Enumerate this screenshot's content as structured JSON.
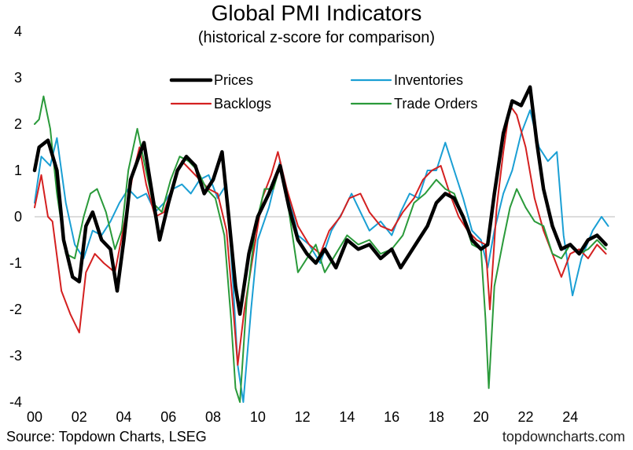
{
  "header": {
    "title": "Global PMI Indicators",
    "subtitle": "(historical z-score for comparison)"
  },
  "footer": {
    "source": "Source: Topdown Charts, LSEG",
    "credit": "topdowncharts.com"
  },
  "chart_data": {
    "type": "line",
    "title": "Global PMI Indicators",
    "subtitle": "(historical z-score for comparison)",
    "xlabel": "",
    "ylabel": "",
    "xlim": [
      2000,
      2026
    ],
    "ylim": [
      -4,
      4
    ],
    "yticks": [
      -4,
      -3,
      -2,
      -1,
      0,
      1,
      2,
      3,
      4
    ],
    "xticks": [
      {
        "value": 2000,
        "label": "00"
      },
      {
        "value": 2002,
        "label": "02"
      },
      {
        "value": 2004,
        "label": "04"
      },
      {
        "value": 2006,
        "label": "06"
      },
      {
        "value": 2008,
        "label": "08"
      },
      {
        "value": 2010,
        "label": "10"
      },
      {
        "value": 2012,
        "label": "12"
      },
      {
        "value": 2014,
        "label": "14"
      },
      {
        "value": 2016,
        "label": "16"
      },
      {
        "value": 2018,
        "label": "18"
      },
      {
        "value": 2020,
        "label": "20"
      },
      {
        "value": 2022,
        "label": "22"
      },
      {
        "value": 2024,
        "label": "24"
      }
    ],
    "zero_line": true,
    "grid": false,
    "legend": "top",
    "series": [
      {
        "name": "Prices",
        "color": "#000000",
        "points": [
          [
            2000.0,
            1.0
          ],
          [
            2000.2,
            1.5
          ],
          [
            2000.6,
            1.65
          ],
          [
            2001.0,
            1.0
          ],
          [
            2001.3,
            -0.5
          ],
          [
            2001.7,
            -1.3
          ],
          [
            2002.0,
            -1.4
          ],
          [
            2002.3,
            -0.2
          ],
          [
            2002.6,
            0.1
          ],
          [
            2003.0,
            -0.5
          ],
          [
            2003.4,
            -0.7
          ],
          [
            2003.7,
            -1.6
          ],
          [
            2004.0,
            -0.5
          ],
          [
            2004.3,
            0.8
          ],
          [
            2004.6,
            1.2
          ],
          [
            2004.9,
            1.6
          ],
          [
            2005.2,
            0.7
          ],
          [
            2005.6,
            -0.5
          ],
          [
            2006.0,
            0.3
          ],
          [
            2006.4,
            1.0
          ],
          [
            2006.8,
            1.3
          ],
          [
            2007.2,
            1.1
          ],
          [
            2007.6,
            0.5
          ],
          [
            2008.0,
            0.8
          ],
          [
            2008.4,
            1.4
          ],
          [
            2008.7,
            0.0
          ],
          [
            2009.0,
            -1.5
          ],
          [
            2009.2,
            -2.1
          ],
          [
            2009.6,
            -0.8
          ],
          [
            2010.0,
            0.0
          ],
          [
            2010.5,
            0.5
          ],
          [
            2011.0,
            1.1
          ],
          [
            2011.4,
            0.2
          ],
          [
            2011.8,
            -0.5
          ],
          [
            2012.2,
            -0.8
          ],
          [
            2012.6,
            -1.0
          ],
          [
            2013.0,
            -0.7
          ],
          [
            2013.5,
            -1.1
          ],
          [
            2014.0,
            -0.5
          ],
          [
            2014.5,
            -0.7
          ],
          [
            2015.0,
            -0.6
          ],
          [
            2015.5,
            -0.9
          ],
          [
            2016.0,
            -0.7
          ],
          [
            2016.4,
            -1.1
          ],
          [
            2016.8,
            -0.8
          ],
          [
            2017.2,
            -0.5
          ],
          [
            2017.6,
            -0.2
          ],
          [
            2018.0,
            0.3
          ],
          [
            2018.4,
            0.5
          ],
          [
            2018.8,
            0.4
          ],
          [
            2019.2,
            0.0
          ],
          [
            2019.6,
            -0.5
          ],
          [
            2020.0,
            -0.7
          ],
          [
            2020.3,
            -0.6
          ],
          [
            2020.6,
            0.5
          ],
          [
            2021.0,
            1.8
          ],
          [
            2021.4,
            2.5
          ],
          [
            2021.8,
            2.4
          ],
          [
            2022.2,
            2.8
          ],
          [
            2022.5,
            1.6
          ],
          [
            2022.8,
            0.6
          ],
          [
            2023.2,
            -0.2
          ],
          [
            2023.6,
            -0.7
          ],
          [
            2024.0,
            -0.6
          ],
          [
            2024.4,
            -0.8
          ],
          [
            2024.8,
            -0.5
          ],
          [
            2025.2,
            -0.4
          ],
          [
            2025.6,
            -0.6
          ]
        ]
      },
      {
        "name": "Inventories",
        "color": "#1a9fd4",
        "points": [
          [
            2000.0,
            0.3
          ],
          [
            2000.3,
            1.3
          ],
          [
            2000.7,
            1.1
          ],
          [
            2001.0,
            1.7
          ],
          [
            2001.4,
            0.3
          ],
          [
            2001.8,
            -0.6
          ],
          [
            2002.2,
            -0.9
          ],
          [
            2002.6,
            -0.3
          ],
          [
            2003.0,
            -0.4
          ],
          [
            2003.4,
            -0.1
          ],
          [
            2003.8,
            0.3
          ],
          [
            2004.2,
            0.6
          ],
          [
            2004.6,
            0.4
          ],
          [
            2005.0,
            0.5
          ],
          [
            2005.4,
            0.1
          ],
          [
            2005.8,
            0.3
          ],
          [
            2006.2,
            0.6
          ],
          [
            2006.6,
            0.7
          ],
          [
            2007.0,
            0.5
          ],
          [
            2007.4,
            0.8
          ],
          [
            2007.8,
            0.9
          ],
          [
            2008.2,
            0.4
          ],
          [
            2008.6,
            0.7
          ],
          [
            2008.9,
            -1.5
          ],
          [
            2009.1,
            -3.2
          ],
          [
            2009.35,
            -4.0
          ],
          [
            2009.7,
            -2.0
          ],
          [
            2010.0,
            -0.5
          ],
          [
            2010.5,
            0.2
          ],
          [
            2011.0,
            1.2
          ],
          [
            2011.4,
            0.4
          ],
          [
            2011.8,
            -0.4
          ],
          [
            2012.3,
            -0.6
          ],
          [
            2012.8,
            -1.0
          ],
          [
            2013.3,
            -0.3
          ],
          [
            2013.8,
            0.1
          ],
          [
            2014.2,
            0.5
          ],
          [
            2014.6,
            0.1
          ],
          [
            2015.0,
            -0.3
          ],
          [
            2015.5,
            -0.1
          ],
          [
            2016.0,
            -0.4
          ],
          [
            2016.4,
            0.1
          ],
          [
            2016.8,
            0.5
          ],
          [
            2017.2,
            0.4
          ],
          [
            2017.6,
            1.0
          ],
          [
            2018.0,
            1.0
          ],
          [
            2018.4,
            1.6
          ],
          [
            2018.8,
            1.0
          ],
          [
            2019.2,
            0.4
          ],
          [
            2019.6,
            -0.3
          ],
          [
            2020.0,
            -0.5
          ],
          [
            2020.3,
            -1.1
          ],
          [
            2020.6,
            -0.3
          ],
          [
            2021.0,
            0.5
          ],
          [
            2021.4,
            1.0
          ],
          [
            2021.8,
            1.8
          ],
          [
            2022.2,
            2.3
          ],
          [
            2022.6,
            1.5
          ],
          [
            2023.0,
            1.2
          ],
          [
            2023.4,
            1.4
          ],
          [
            2023.7,
            -0.4
          ],
          [
            2024.1,
            -1.7
          ],
          [
            2024.5,
            -0.9
          ],
          [
            2025.0,
            -0.3
          ],
          [
            2025.4,
            0.0
          ],
          [
            2025.7,
            -0.2
          ]
        ]
      },
      {
        "name": "Backlogs",
        "color": "#d42020",
        "points": [
          [
            2000.0,
            0.2
          ],
          [
            2000.3,
            0.9
          ],
          [
            2000.6,
            0.0
          ],
          [
            2000.8,
            -0.1
          ],
          [
            2001.2,
            -1.6
          ],
          [
            2001.6,
            -2.1
          ],
          [
            2002.0,
            -2.5
          ],
          [
            2002.3,
            -1.2
          ],
          [
            2002.7,
            -0.8
          ],
          [
            2003.1,
            -1.0
          ],
          [
            2003.6,
            -1.2
          ],
          [
            2004.0,
            -0.2
          ],
          [
            2004.4,
            0.9
          ],
          [
            2004.7,
            1.5
          ],
          [
            2005.0,
            0.7
          ],
          [
            2005.4,
            0.0
          ],
          [
            2005.8,
            0.1
          ],
          [
            2006.2,
            0.7
          ],
          [
            2006.6,
            1.2
          ],
          [
            2007.0,
            1.0
          ],
          [
            2007.4,
            0.8
          ],
          [
            2007.8,
            0.6
          ],
          [
            2008.2,
            0.5
          ],
          [
            2008.6,
            -0.3
          ],
          [
            2008.9,
            -2.0
          ],
          [
            2009.1,
            -3.2
          ],
          [
            2009.4,
            -2.0
          ],
          [
            2009.8,
            -0.8
          ],
          [
            2010.2,
            0.4
          ],
          [
            2010.6,
            0.9
          ],
          [
            2010.9,
            1.4
          ],
          [
            2011.3,
            0.6
          ],
          [
            2011.8,
            -0.2
          ],
          [
            2012.3,
            -0.6
          ],
          [
            2012.8,
            -0.8
          ],
          [
            2013.2,
            -0.3
          ],
          [
            2013.7,
            0.0
          ],
          [
            2014.1,
            0.4
          ],
          [
            2014.6,
            0.5
          ],
          [
            2015.0,
            0.1
          ],
          [
            2015.5,
            -0.2
          ],
          [
            2016.0,
            -0.3
          ],
          [
            2016.5,
            0.1
          ],
          [
            2017.0,
            0.4
          ],
          [
            2017.4,
            0.8
          ],
          [
            2017.8,
            1.0
          ],
          [
            2018.2,
            1.1
          ],
          [
            2018.6,
            0.5
          ],
          [
            2019.0,
            0.0
          ],
          [
            2019.4,
            -0.3
          ],
          [
            2019.8,
            -0.5
          ],
          [
            2020.2,
            -0.6
          ],
          [
            2020.4,
            -2.0
          ],
          [
            2020.7,
            0.2
          ],
          [
            2021.0,
            1.4
          ],
          [
            2021.3,
            2.4
          ],
          [
            2021.6,
            2.2
          ],
          [
            2022.0,
            1.5
          ],
          [
            2022.4,
            0.4
          ],
          [
            2022.8,
            -0.3
          ],
          [
            2023.2,
            -0.8
          ],
          [
            2023.6,
            -1.3
          ],
          [
            2024.0,
            -0.8
          ],
          [
            2024.4,
            -0.7
          ],
          [
            2024.8,
            -0.9
          ],
          [
            2025.2,
            -0.6
          ],
          [
            2025.6,
            -0.8
          ]
        ]
      },
      {
        "name": "Trade Orders",
        "color": "#2a9a3a",
        "points": [
          [
            2000.0,
            2.0
          ],
          [
            2000.2,
            2.1
          ],
          [
            2000.4,
            2.6
          ],
          [
            2000.7,
            1.9
          ],
          [
            2001.0,
            0.5
          ],
          [
            2001.4,
            -0.8
          ],
          [
            2001.8,
            -0.9
          ],
          [
            2002.2,
            0.0
          ],
          [
            2002.5,
            0.5
          ],
          [
            2002.8,
            0.6
          ],
          [
            2003.2,
            0.1
          ],
          [
            2003.6,
            -0.7
          ],
          [
            2003.9,
            -0.3
          ],
          [
            2004.2,
            1.0
          ],
          [
            2004.6,
            1.9
          ],
          [
            2004.9,
            1.2
          ],
          [
            2005.3,
            0.3
          ],
          [
            2005.7,
            0.1
          ],
          [
            2006.1,
            0.8
          ],
          [
            2006.5,
            1.3
          ],
          [
            2006.9,
            1.2
          ],
          [
            2007.3,
            1.0
          ],
          [
            2007.7,
            0.6
          ],
          [
            2008.1,
            0.4
          ],
          [
            2008.5,
            -0.4
          ],
          [
            2008.8,
            -2.2
          ],
          [
            2009.0,
            -3.7
          ],
          [
            2009.2,
            -4.0
          ],
          [
            2009.5,
            -1.8
          ],
          [
            2009.9,
            -0.2
          ],
          [
            2010.3,
            0.6
          ],
          [
            2010.7,
            0.6
          ],
          [
            2011.0,
            1.1
          ],
          [
            2011.4,
            0.1
          ],
          [
            2011.8,
            -1.2
          ],
          [
            2012.2,
            -0.9
          ],
          [
            2012.6,
            -0.6
          ],
          [
            2013.0,
            -1.2
          ],
          [
            2013.5,
            -0.8
          ],
          [
            2014.0,
            -0.4
          ],
          [
            2014.5,
            -0.6
          ],
          [
            2015.0,
            -0.5
          ],
          [
            2015.5,
            -0.8
          ],
          [
            2016.0,
            -0.7
          ],
          [
            2016.5,
            -0.4
          ],
          [
            2017.0,
            0.3
          ],
          [
            2017.5,
            0.5
          ],
          [
            2018.0,
            0.8
          ],
          [
            2018.4,
            0.6
          ],
          [
            2018.8,
            0.5
          ],
          [
            2019.2,
            0.0
          ],
          [
            2019.6,
            -0.6
          ],
          [
            2020.0,
            -0.7
          ],
          [
            2020.2,
            -2.2
          ],
          [
            2020.35,
            -3.7
          ],
          [
            2020.6,
            -1.5
          ],
          [
            2021.0,
            -0.5
          ],
          [
            2021.3,
            0.2
          ],
          [
            2021.6,
            0.6
          ],
          [
            2022.0,
            0.2
          ],
          [
            2022.4,
            -0.1
          ],
          [
            2022.8,
            -0.2
          ],
          [
            2023.2,
            -0.8
          ],
          [
            2023.6,
            -0.9
          ],
          [
            2024.0,
            -0.6
          ],
          [
            2024.4,
            -0.8
          ],
          [
            2024.8,
            -0.7
          ],
          [
            2025.2,
            -0.5
          ],
          [
            2025.6,
            -0.7
          ]
        ]
      }
    ]
  }
}
